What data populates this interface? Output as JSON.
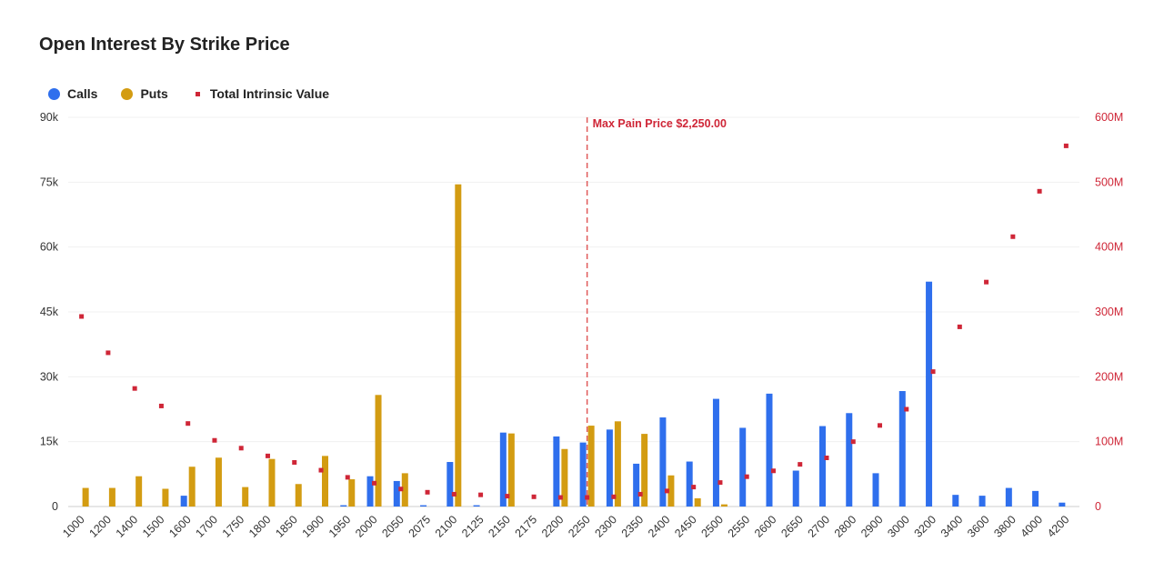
{
  "colors": {
    "calls": "#2f6fed",
    "puts": "#d39c12",
    "intrinsic": "#cf2637",
    "max_pain": "#e05a5a",
    "grid": "#f0f0f0",
    "axis_text_left": "#333333",
    "axis_text_right": "#cf2637"
  },
  "chart_data": {
    "type": "bar",
    "title": "Open Interest By Strike Price",
    "legend_position": "top-left",
    "grid": true,
    "categories": [
      "1000",
      "1200",
      "1400",
      "1500",
      "1600",
      "1700",
      "1750",
      "1800",
      "1850",
      "1900",
      "1950",
      "2000",
      "2050",
      "2075",
      "2100",
      "2125",
      "2150",
      "2175",
      "2200",
      "2250",
      "2300",
      "2350",
      "2400",
      "2450",
      "2500",
      "2550",
      "2600",
      "2650",
      "2700",
      "2800",
      "2900",
      "3000",
      "3200",
      "3400",
      "3600",
      "3800",
      "4000",
      "4200"
    ],
    "series": [
      {
        "name": "Calls",
        "axis": "left",
        "type": "bar",
        "values": [
          0,
          0,
          0,
          0,
          2500,
          0,
          0,
          0,
          0,
          0,
          300,
          7000,
          5900,
          300,
          10300,
          300,
          17100,
          0,
          16200,
          14800,
          17800,
          9900,
          20600,
          10400,
          24900,
          18200,
          26100,
          8300,
          18600,
          21600,
          7700,
          26700,
          52000,
          2700,
          2500,
          4300,
          3600,
          900
        ]
      },
      {
        "name": "Puts",
        "axis": "left",
        "type": "bar",
        "values": [
          4300,
          4300,
          7000,
          4100,
          9200,
          11300,
          4500,
          11000,
          5200,
          11700,
          6300,
          25800,
          7700,
          0,
          74500,
          0,
          16900,
          0,
          13300,
          18700,
          19700,
          16800,
          7200,
          1900,
          500,
          0,
          0,
          0,
          0,
          0,
          0,
          0,
          0,
          0,
          0,
          0,
          0,
          0
        ]
      },
      {
        "name": "Total Intrinsic Value",
        "axis": "right",
        "type": "scatter",
        "values": [
          293000000,
          237000000,
          182000000,
          155000000,
          128000000,
          102000000,
          90000000,
          78000000,
          68000000,
          56000000,
          45000000,
          36000000,
          27000000,
          22000000,
          19000000,
          18000000,
          16000000,
          15000000,
          14000000,
          14000000,
          15000000,
          19000000,
          24000000,
          30000000,
          37000000,
          46000000,
          55000000,
          65000000,
          75000000,
          100000000,
          125000000,
          150000000,
          208000000,
          277000000,
          346000000,
          416000000,
          486000000,
          556000000
        ]
      }
    ],
    "y_left": {
      "min": 0,
      "max": 90000,
      "ticks": [
        0,
        15000,
        30000,
        45000,
        60000,
        75000,
        90000
      ],
      "tick_labels": [
        "0",
        "15k",
        "30k",
        "45k",
        "60k",
        "75k",
        "90k"
      ]
    },
    "y_right": {
      "min": 0,
      "max": 600000000,
      "ticks": [
        0,
        100000000,
        200000000,
        300000000,
        400000000,
        500000000,
        600000000
      ],
      "tick_labels": [
        "0",
        "100M",
        "200M",
        "300M",
        "400M",
        "500M",
        "600M"
      ]
    },
    "annotation": {
      "category": "2250",
      "label": "Max Pain Price $2,250.00"
    }
  }
}
